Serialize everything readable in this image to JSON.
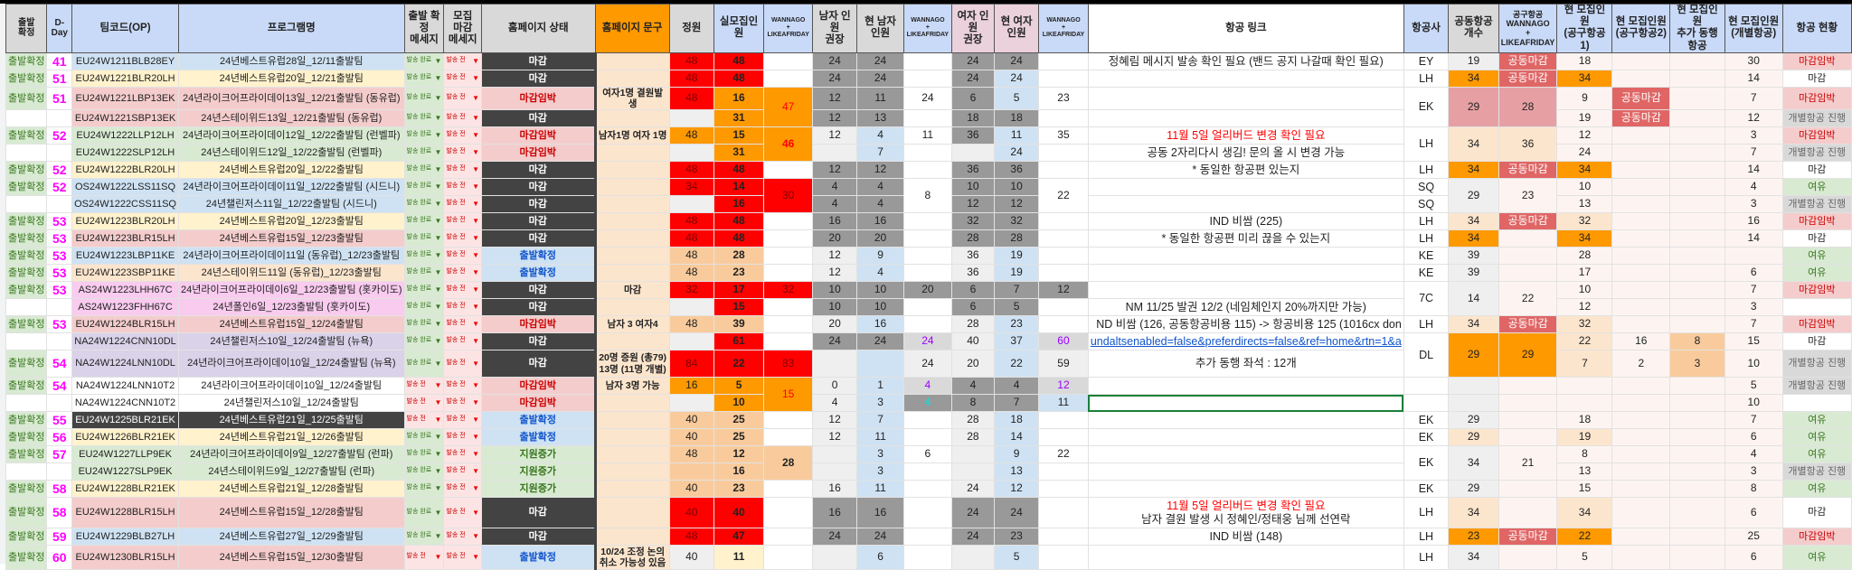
{
  "colors": {
    "accent_red": "#ff0000",
    "accent_orange": "#ff9900",
    "dday": "#ff00ff",
    "confirmed_green": "#38761d",
    "closed_dark": "#434343",
    "link_blue": "#1155cc"
  },
  "headers": [
    "출발\n확정",
    "D-Day",
    "팀코드(OP)",
    "프로그램명",
    "출발 확정\n메세지",
    "모집\n마감\n메세지",
    "홈페이지 상태",
    "홈페이지 문구",
    "정원",
    "실모집인원",
    "WANNAGO\n+\nLIKEAFRIDAY",
    "남자 인원\n권장",
    "현 남자\n인원",
    "WANNAGO\n+\nLIKEAFRIDAY",
    "여자 인원\n권장",
    "현 여자\n인원",
    "WANNAGO\n+\nLIKEAFRIDAY",
    "항공 링크",
    "항공사",
    "공동항공\n개수",
    "공구항공\nWANNAGO\n+\nLIKEAFRIDAY",
    "현 모집인원\n(공구항공1)",
    "현 모집인원\n(공구항공2)",
    "현 모집인원\n추가 동행항공",
    "현 모집인원\n(개별항공)",
    "항공 현황"
  ],
  "rows": [
    {
      "cells": [
        "출발확정",
        "41",
        "EU24W1211BLB28EY",
        "24년베스트유럽28일_12/11출발팀",
        "발송 완료",
        "발송 전",
        "마감",
        "",
        "48",
        "48",
        "",
        "24",
        "24",
        "",
        "24",
        "24",
        "",
        "정혜림 메시지 발송 확인 필요 (밴드 공지 나갈때 확인 필요)",
        "EY",
        "19",
        "공동마감",
        "18",
        "",
        "",
        "30",
        "마감임박"
      ]
    },
    {
      "cells": [
        "출발확정",
        "51",
        "EU24W1221BLR20LH",
        "24년베스트유럽20일_12/21출발팀",
        "발송 완료",
        "발송 전",
        "마감",
        "",
        "48",
        "48",
        "",
        "24",
        "24",
        "",
        "24",
        "24",
        "",
        "",
        "LH",
        "34",
        "공동마감",
        "34",
        "",
        "",
        "14",
        "마감"
      ]
    },
    {
      "cells": [
        "출발확정",
        "51",
        "EU24W1221LBP13EK",
        "24년라이크어프라이데이13일_12/21출발팀 (동유럽)",
        "발송 완료",
        "발송 전",
        "마감임박",
        "여자1명 결원발생",
        "48",
        "16",
        "47",
        "12",
        "11",
        "24",
        "6",
        "5",
        "23",
        "",
        "EK",
        "29",
        "28",
        "9",
        "공동마감",
        "",
        "7",
        "마감임박"
      ]
    },
    {
      "cells": [
        "",
        "",
        "EU24W1221SBP13EK",
        "24년스테이위드13일_12/21출발팀 (동유럽)",
        "발송 완료",
        "발송 전",
        "마감",
        "",
        "",
        "31",
        null,
        "12",
        "13",
        "",
        "18",
        "18",
        "",
        "",
        null,
        null,
        null,
        "19",
        "공동마감",
        "",
        "12",
        "개별항공 진행"
      ]
    },
    {
      "cells": [
        "출발확정",
        "52",
        "EU24W1222LLP12LH",
        "24년라이크어프라이데이12일_12/22출발팀 (런벨파)",
        "발송 완료",
        "발송 전",
        "마감임박",
        "남자1명 여자 1명",
        "48",
        "15",
        "46",
        "12",
        "4",
        "11",
        "36",
        "11",
        "35",
        {
          "red": "11월 5일 얼리버드 변경 확인 필요"
        },
        "LH",
        "34",
        "36",
        "12",
        "",
        "",
        "3",
        "마감임박"
      ]
    },
    {
      "cells": [
        "",
        "",
        "EU24W1222SLP12LH",
        "24년스테이위드12일_12/22출발팀 (런벨파)",
        "발송 완료",
        "발송 전",
        "마감임박",
        "",
        "",
        "31",
        null,
        "",
        "7",
        "",
        "",
        "24",
        "",
        "공동 2자리다시 생김! 문의 올 시 변경 가능",
        null,
        null,
        null,
        "24",
        "",
        "",
        "7",
        "개별항공 진행"
      ]
    },
    {
      "cells": [
        "출발확정",
        "52",
        "EU24W1222BLR20LH",
        "24년베스트유럽20일_12/22출발팀",
        "발송 완료",
        "발송 전",
        "마감",
        "",
        "48",
        "48",
        "",
        "12",
        "12",
        "",
        "36",
        "36",
        "",
        "* 동일한 항공편 있는지",
        "LH",
        "34",
        "공동마감",
        "34",
        "",
        "",
        "14",
        "마감"
      ]
    },
    {
      "cells": [
        "출발확정",
        "52",
        "OS24W1222LSS11SQ",
        "24년라이크어프라이데이11일_12/22출발팀 (시드니)",
        "발송 완료",
        "발송 전",
        "마감",
        "",
        "34",
        "14",
        "30",
        "4",
        "4",
        "8",
        "10",
        "10",
        "22",
        "",
        "SQ",
        "29",
        "23",
        "10",
        "",
        "",
        "4",
        "여유"
      ]
    },
    {
      "cells": [
        "",
        "",
        "OS24W1222CSS11SQ",
        "24년챌린저스11일_12/22출발팀 (시드니)",
        "발송 완료",
        "발송 전",
        "마감",
        "",
        "",
        "16",
        null,
        "4",
        "4",
        null,
        "12",
        "12",
        null,
        "",
        "SQ",
        null,
        null,
        "13",
        "",
        "",
        "3",
        "개별항공 진행"
      ]
    },
    {
      "cells": [
        "출발확정",
        "53",
        "EU24W1223BLR20LH",
        "24년베스트유럽20일_12/23출발팀",
        "발송 완료",
        "발송 전",
        "마감",
        "",
        "48",
        "48",
        "",
        "16",
        "16",
        "",
        "32",
        "32",
        "",
        "IND 비쌈 (225)",
        "LH",
        "34",
        "공동마감",
        "32",
        "",
        "",
        "16",
        "마감임박"
      ]
    },
    {
      "cells": [
        "출발확정",
        "53",
        "EU24W1223BLR15LH",
        "24년베스트유럽15일_12/23출발팀",
        "발송 완료",
        "발송 전",
        "마감",
        "",
        "48",
        "48",
        "",
        "20",
        "20",
        "",
        "28",
        "28",
        "",
        "* 동일한 항공편 미리 끊을 수 있는지",
        "LH",
        "34",
        "",
        "34",
        "",
        "",
        "14",
        "마감"
      ]
    },
    {
      "cells": [
        "출발확정",
        "53",
        "EU24W1223LBP11KE",
        "24년라이크어프라이데이11일 (동유럽)_12/23출발팀",
        "발송 완료",
        "발송 전",
        "출발확정",
        "",
        "48",
        "28",
        "",
        "12",
        "9",
        "",
        "36",
        "19",
        "",
        "",
        "KE",
        "39",
        "",
        "28",
        "",
        "",
        "",
        "여유"
      ]
    },
    {
      "cells": [
        "출발확정",
        "53",
        "EU24W1223SBP11KE",
        "24년스테이위드11일 (동유럽)_12/23출발팀",
        "발송 완료",
        "발송 전",
        "출발확정",
        "",
        "48",
        "23",
        "",
        "12",
        "4",
        "",
        "36",
        "19",
        "",
        "",
        "KE",
        "39",
        "",
        "17",
        "",
        "",
        "6",
        "여유"
      ]
    },
    {
      "cells": [
        "출발확정",
        "53",
        "AS24W1223LHH67C",
        "24년라이크어프라이데이6일_12/23출발팀 (홋카이도)",
        "발송 완료",
        "발송 전",
        "마감",
        "마감",
        "32",
        "17",
        "32",
        "10",
        "10",
        "20",
        "6",
        "7",
        "12",
        "",
        "7C",
        "14",
        "22",
        "10",
        "",
        "",
        "7",
        "마감임박"
      ]
    },
    {
      "cells": [
        "",
        "",
        "AS24W1223FHH67C",
        "24년폴인6일_12/23출발팀 (홋카이도)",
        "발송 완료",
        "발송 전",
        "마감",
        "",
        "",
        "15",
        "",
        "10",
        "10",
        "",
        "6",
        "5",
        "",
        "NM 11/25 발권 12/2 (네임체인지 20%까지만 가능)",
        null,
        null,
        null,
        "12",
        "",
        "",
        "3",
        ""
      ]
    },
    {
      "cells": [
        "출발확정",
        "53",
        "EU24W1224BLR15LH",
        "24년베스트유럽15일_12/24출발팀",
        "발송 완료",
        "발송 전",
        "마감임박",
        "남자 3 여자4",
        "48",
        "39",
        "",
        "20",
        "16",
        "",
        "28",
        "23",
        "",
        "ND 비쌈 (126, 공동항공비용 115) -> 항공비용 125 (1016cx don",
        "LH",
        "34",
        "공동마감",
        "32",
        "",
        "",
        "7",
        "마감임박"
      ]
    },
    {
      "cells": [
        "",
        "",
        "NA24W1224CNN10DL",
        "24년챌린저스10일_12/24출발팀 (뉴욕)",
        "발송 완료",
        "발송 전",
        "마감",
        "",
        "",
        "61",
        "",
        "24",
        "24",
        "24",
        "40",
        "37",
        "60",
        {
          "link": "undaltsenabled=false&preferdirects=false&ref=home&rtn=1&a"
        },
        "DL",
        "29",
        "29",
        "22",
        "16",
        "8",
        "15",
        "마감"
      ]
    },
    {
      "cells": [
        "출발확정",
        "54",
        "NA24W1224LNN10DL",
        "24년라이크어프라이데이10일_12/24출발팀 (뉴욕)",
        "발송 완료",
        "발송 전",
        "마감",
        "20명 증원 (총79)\n13명 (11명 개별)",
        "84",
        "22",
        "83",
        "",
        "",
        "24",
        "20",
        "22",
        "59",
        "추가 동행 좌석 : 12개",
        null,
        null,
        null,
        "7",
        "2",
        "3",
        "10",
        "개별항공 진행"
      ]
    },
    {
      "cells": [
        "출발확정",
        "54",
        "NA24W1224LNN10T2",
        "24년라이크어프라이데이10일_12/24출발팀",
        "발송 전",
        "발송 전",
        "마감임박",
        "남자 3명 가능",
        "16",
        "5",
        "15",
        "0",
        "1",
        "4",
        "4",
        "4",
        "12",
        "",
        "",
        "",
        "",
        "",
        "",
        "",
        "5",
        "개별항공 진행"
      ]
    },
    {
      "cells": [
        "",
        "",
        "NA24W1224CNN10T2",
        "24년챌린저스10일_12/24출발팀",
        "발송 전",
        "발송 전",
        "마감임박",
        "",
        "",
        "10",
        null,
        "4",
        "3",
        "4",
        "8",
        "7",
        "11",
        "",
        "",
        "",
        "",
        "",
        "",
        "",
        "10",
        ""
      ]
    },
    {
      "cells": [
        "출발확정",
        "55",
        "EU24W1225BLR21EK",
        "24년베스트유럽21일_12/25출발팀",
        "발송 전",
        "발송 전",
        "출발확정",
        "",
        "40",
        "25",
        "",
        "12",
        "7",
        "",
        "28",
        "18",
        "",
        "",
        "EK",
        "29",
        "",
        "18",
        "",
        "",
        "7",
        "여유"
      ]
    },
    {
      "cells": [
        "출발확정",
        "56",
        "EU24W1226BLR21EK",
        "24년베스트유럽21일_12/26출발팀",
        "발송 완료",
        "발송 전",
        "출발확정",
        "",
        "40",
        "25",
        "",
        "12",
        "11",
        "",
        "28",
        "14",
        "",
        "",
        "EK",
        "29",
        "",
        "19",
        "",
        "",
        "6",
        "여유"
      ]
    },
    {
      "cells": [
        "출발확정",
        "57",
        "EU24W1227LLP9EK",
        "24년라이크어프라이데이9일_12/27출발팀 (런파)",
        "발송 완료",
        "발송 전",
        "지원증가",
        "",
        "48",
        "12",
        "28",
        "",
        "3",
        "6",
        "",
        "9",
        "22",
        "",
        "EK",
        "34",
        "21",
        "8",
        "",
        "",
        "4",
        "여유"
      ]
    },
    {
      "cells": [
        "",
        "",
        "EU24W1227SLP9EK",
        "24년스테이위드9일_12/27출발팀 (런파)",
        "발송 완료",
        "발송 전",
        "지원증가",
        "",
        "",
        "16",
        null,
        "",
        "3",
        "",
        "",
        "13",
        "",
        "",
        null,
        null,
        null,
        "13",
        "",
        "",
        "3",
        "개별항공 진행"
      ]
    },
    {
      "cells": [
        "출발확정",
        "58",
        "EU24W1228BLR21EK",
        "24년베스트유럽21일_12/28출발팀",
        "발송 완료",
        "발송 전",
        "지원증가",
        "",
        "40",
        "23",
        "",
        "16",
        "11",
        "",
        "24",
        "12",
        "",
        "",
        "EK",
        "29",
        "",
        "15",
        "",
        "",
        "8",
        "여유"
      ]
    },
    {
      "cells": [
        "출발확정",
        "58",
        "EU24W1228BLR15LH",
        "24년베스트유럽15일_12/28출발팀",
        "발송 완료",
        "발송 전",
        "마감",
        "",
        "40",
        "40",
        "",
        "16",
        "16",
        "",
        "24",
        "24",
        "",
        {
          "red": "11월 5일 얼리버드 변경 확인 필요",
          "text": "남자 결원 발생 시 정혜인/정태웅 님께 선연락"
        },
        "LH",
        "34",
        "",
        "34",
        "",
        "",
        "6",
        "마감"
      ]
    },
    {
      "cells": [
        "출발확정",
        "59",
        "EU24W1229BLB27LH",
        "24년베스트유럽27일_12/29출발팀",
        "발송 완료",
        "발송 전",
        "마감",
        "",
        "48",
        "47",
        "",
        "24",
        "24",
        "",
        "24",
        "23",
        "",
        "IND 비쌈 (148)",
        "LH",
        "23",
        "공동마감",
        "22",
        "",
        "",
        "25",
        "마감임박"
      ]
    },
    {
      "cells": [
        "출발확정",
        "60",
        "EU24W1230BLR15LH",
        "24년베스트유럽15일_12/30출발팀",
        "발송 전",
        "발송 전",
        "출발확정",
        "10/24 조정 논의\n취소 가능성 있음",
        "40",
        "11",
        "",
        "",
        "6",
        "",
        "",
        "5",
        "",
        "",
        "LH",
        "34",
        "",
        "5",
        "",
        "",
        "6",
        "여유"
      ]
    }
  ]
}
